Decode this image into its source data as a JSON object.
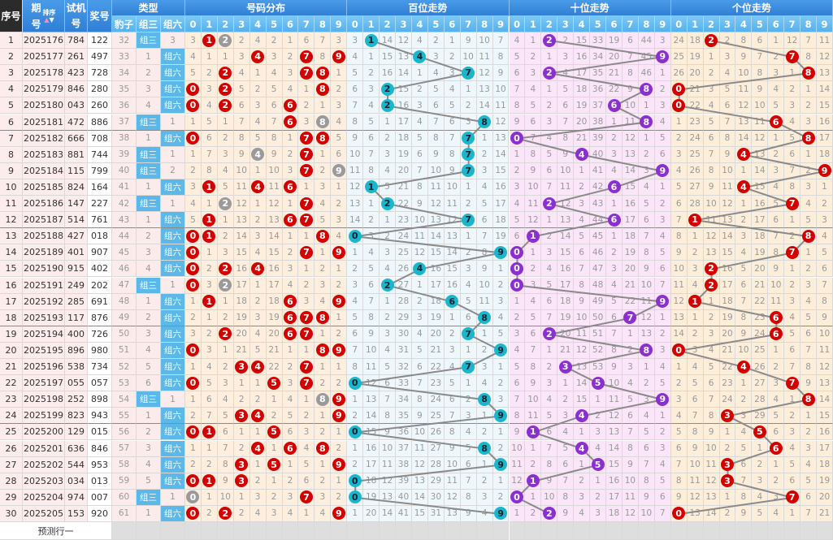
{
  "header": {
    "seq": "序号",
    "period": "期号",
    "sort_label": "排序",
    "test": "试机号",
    "prize": "奖号",
    "type_group": "类型",
    "types": [
      "豹子",
      "组三",
      "组六"
    ],
    "dist_group": "号码分布",
    "bai_group": "百位走势",
    "shi_group": "十位走势",
    "ge_group": "个位走势",
    "digits": [
      "0",
      "1",
      "2",
      "3",
      "4",
      "5",
      "6",
      "7",
      "8",
      "9"
    ]
  },
  "rows": [
    {
      "seq": "1",
      "period": "2025176",
      "test": "784",
      "prize": "122"
    },
    {
      "seq": "2",
      "period": "2025177",
      "test": "261",
      "prize": "497"
    },
    {
      "seq": "3",
      "period": "2025178",
      "test": "423",
      "prize": "728"
    },
    {
      "seq": "4",
      "period": "2025179",
      "test": "846",
      "prize": "280"
    },
    {
      "seq": "5",
      "period": "2025180",
      "test": "043",
      "prize": "260"
    },
    {
      "seq": "6",
      "period": "2025181",
      "test": "472",
      "prize": "886"
    },
    {
      "seq": "7",
      "period": "2025182",
      "test": "666",
      "prize": "708"
    },
    {
      "seq": "8",
      "period": "2025183",
      "test": "881",
      "prize": "744"
    },
    {
      "seq": "9",
      "period": "2025184",
      "test": "115",
      "prize": "799"
    },
    {
      "seq": "10",
      "period": "2025185",
      "test": "824",
      "prize": "164"
    },
    {
      "seq": "11",
      "period": "2025186",
      "test": "147",
      "prize": "227"
    },
    {
      "seq": "12",
      "period": "2025187",
      "test": "514",
      "prize": "761"
    },
    {
      "seq": "13",
      "period": "2025188",
      "test": "427",
      "prize": "018"
    },
    {
      "seq": "14",
      "period": "2025189",
      "test": "401",
      "prize": "907"
    },
    {
      "seq": "15",
      "period": "2025190",
      "test": "915",
      "prize": "402"
    },
    {
      "seq": "16",
      "period": "2025191",
      "test": "249",
      "prize": "202"
    },
    {
      "seq": "17",
      "period": "2025192",
      "test": "285",
      "prize": "691"
    },
    {
      "seq": "18",
      "period": "2025193",
      "test": "117",
      "prize": "876"
    },
    {
      "seq": "19",
      "period": "2025194",
      "test": "400",
      "prize": "726"
    },
    {
      "seq": "20",
      "period": "2025195",
      "test": "896",
      "prize": "980"
    },
    {
      "seq": "21",
      "period": "2025196",
      "test": "538",
      "prize": "734"
    },
    {
      "seq": "22",
      "period": "2025197",
      "test": "055",
      "prize": "057"
    },
    {
      "seq": "23",
      "period": "2025198",
      "test": "252",
      "prize": "898"
    },
    {
      "seq": "24",
      "period": "2025199",
      "test": "823",
      "prize": "943"
    },
    {
      "seq": "25",
      "period": "2025200",
      "test": "129",
      "prize": "015"
    },
    {
      "seq": "26",
      "period": "2025201",
      "test": "636",
      "prize": "846"
    },
    {
      "seq": "27",
      "period": "2025202",
      "test": "544",
      "prize": "953"
    },
    {
      "seq": "28",
      "period": "2025203",
      "test": "034",
      "prize": "013"
    },
    {
      "seq": "29",
      "period": "2025204",
      "test": "974",
      "prize": "007"
    },
    {
      "seq": "30",
      "period": "2025205",
      "test": "153",
      "prize": "920"
    }
  ],
  "first_row_omissions": {
    "types": [
      32,
      0,
      3
    ],
    "dist": [
      3,
      0,
      0,
      2,
      4,
      2,
      1,
      6,
      7,
      3
    ],
    "bai": [
      3,
      0,
      14,
      12,
      4,
      2,
      1,
      9,
      10,
      7
    ],
    "shi": [
      4,
      1,
      0,
      2,
      15,
      33,
      19,
      6,
      44,
      3
    ],
    "ge": [
      24,
      18,
      0,
      2,
      8,
      6,
      1,
      12,
      7,
      11
    ]
  },
  "footer": {
    "predict_label": "预测行一"
  },
  "colors": {
    "dist_ball": "#d40000",
    "double_ball": "#9a9a9a",
    "bai_ball": "#1ab6cc",
    "shi_ball": "#8b2fd1",
    "ge_ball": "#d40000",
    "trend_line": "#8a8a8a",
    "type_hit": "#5bb8e8"
  }
}
